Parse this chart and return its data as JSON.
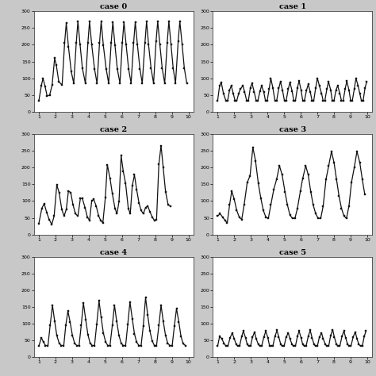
{
  "cases": [
    "case 0",
    "case 1",
    "case 2",
    "case 3",
    "case 4",
    "case 5"
  ],
  "ylim": [
    0,
    300
  ],
  "yticks": [
    0,
    50,
    100,
    150,
    200,
    250,
    300
  ],
  "xticks": [
    1,
    2,
    3,
    4,
    5,
    6,
    7,
    8,
    9,
    10
  ],
  "bg_color": "#ffffff",
  "fig_bg": "#c8c8c8",
  "line_color": "#111111",
  "case0": [
    [
      1.0,
      33
    ],
    [
      1.15,
      78
    ],
    [
      1.25,
      100
    ],
    [
      1.38,
      75
    ],
    [
      1.5,
      47
    ],
    [
      1.65,
      50
    ],
    [
      1.8,
      80
    ],
    [
      1.95,
      160
    ],
    [
      2.05,
      140
    ],
    [
      2.2,
      90
    ],
    [
      2.4,
      80
    ],
    [
      2.55,
      205
    ],
    [
      2.65,
      265
    ],
    [
      2.78,
      195
    ],
    [
      2.95,
      120
    ],
    [
      3.1,
      85
    ],
    [
      3.25,
      205
    ],
    [
      3.35,
      270
    ],
    [
      3.48,
      200
    ],
    [
      3.62,
      130
    ],
    [
      3.8,
      85
    ],
    [
      3.95,
      205
    ],
    [
      4.05,
      270
    ],
    [
      4.18,
      200
    ],
    [
      4.35,
      128
    ],
    [
      4.5,
      85
    ],
    [
      4.65,
      205
    ],
    [
      4.75,
      270
    ],
    [
      4.88,
      198
    ],
    [
      5.05,
      128
    ],
    [
      5.2,
      85
    ],
    [
      5.35,
      205
    ],
    [
      5.45,
      268
    ],
    [
      5.58,
      198
    ],
    [
      5.72,
      128
    ],
    [
      5.88,
      85
    ],
    [
      6.02,
      205
    ],
    [
      6.12,
      268
    ],
    [
      6.25,
      200
    ],
    [
      6.4,
      128
    ],
    [
      6.55,
      85
    ],
    [
      6.7,
      205
    ],
    [
      6.8,
      268
    ],
    [
      6.93,
      200
    ],
    [
      7.08,
      128
    ],
    [
      7.22,
      85
    ],
    [
      7.38,
      205
    ],
    [
      7.48,
      270
    ],
    [
      7.6,
      200
    ],
    [
      7.75,
      130
    ],
    [
      7.9,
      85
    ],
    [
      8.05,
      210
    ],
    [
      8.15,
      270
    ],
    [
      8.28,
      200
    ],
    [
      8.42,
      130
    ],
    [
      8.57,
      85
    ],
    [
      8.72,
      205
    ],
    [
      8.82,
      270
    ],
    [
      8.95,
      200
    ],
    [
      9.08,
      130
    ],
    [
      9.22,
      85
    ],
    [
      9.38,
      210
    ],
    [
      9.48,
      270
    ],
    [
      9.62,
      200
    ],
    [
      9.75,
      130
    ],
    [
      9.9,
      85
    ]
  ],
  "case1": [
    [
      1.0,
      33
    ],
    [
      1.12,
      78
    ],
    [
      1.22,
      88
    ],
    [
      1.35,
      55
    ],
    [
      1.5,
      33
    ],
    [
      1.6,
      33
    ],
    [
      1.72,
      65
    ],
    [
      1.82,
      78
    ],
    [
      1.94,
      55
    ],
    [
      2.05,
      33
    ],
    [
      2.15,
      33
    ],
    [
      2.27,
      55
    ],
    [
      2.37,
      68
    ],
    [
      2.52,
      78
    ],
    [
      2.62,
      60
    ],
    [
      2.75,
      33
    ],
    [
      2.85,
      33
    ],
    [
      2.97,
      72
    ],
    [
      3.07,
      85
    ],
    [
      3.2,
      60
    ],
    [
      3.32,
      33
    ],
    [
      3.42,
      33
    ],
    [
      3.55,
      62
    ],
    [
      3.65,
      78
    ],
    [
      3.78,
      58
    ],
    [
      3.88,
      33
    ],
    [
      3.98,
      33
    ],
    [
      4.1,
      68
    ],
    [
      4.2,
      100
    ],
    [
      4.32,
      72
    ],
    [
      4.45,
      33
    ],
    [
      4.55,
      33
    ],
    [
      4.68,
      70
    ],
    [
      4.78,
      90
    ],
    [
      4.9,
      65
    ],
    [
      5.02,
      33
    ],
    [
      5.12,
      33
    ],
    [
      5.25,
      68
    ],
    [
      5.35,
      88
    ],
    [
      5.48,
      62
    ],
    [
      5.58,
      33
    ],
    [
      5.68,
      33
    ],
    [
      5.8,
      72
    ],
    [
      5.9,
      92
    ],
    [
      6.02,
      65
    ],
    [
      6.12,
      33
    ],
    [
      6.22,
      33
    ],
    [
      6.35,
      65
    ],
    [
      6.45,
      82
    ],
    [
      6.58,
      58
    ],
    [
      6.68,
      33
    ],
    [
      6.78,
      33
    ],
    [
      6.9,
      72
    ],
    [
      7.0,
      100
    ],
    [
      7.12,
      78
    ],
    [
      7.25,
      55
    ],
    [
      7.35,
      33
    ],
    [
      7.45,
      33
    ],
    [
      7.57,
      68
    ],
    [
      7.67,
      90
    ],
    [
      7.8,
      65
    ],
    [
      7.9,
      33
    ],
    [
      8.0,
      33
    ],
    [
      8.12,
      65
    ],
    [
      8.22,
      78
    ],
    [
      8.35,
      55
    ],
    [
      8.45,
      33
    ],
    [
      8.55,
      33
    ],
    [
      8.67,
      68
    ],
    [
      8.77,
      92
    ],
    [
      8.9,
      65
    ],
    [
      9.0,
      33
    ],
    [
      9.1,
      33
    ],
    [
      9.22,
      68
    ],
    [
      9.32,
      100
    ],
    [
      9.45,
      78
    ],
    [
      9.55,
      55
    ],
    [
      9.65,
      33
    ],
    [
      9.75,
      33
    ],
    [
      9.87,
      72
    ],
    [
      9.97,
      90
    ]
  ],
  "case2": [
    [
      1.0,
      33
    ],
    [
      1.18,
      78
    ],
    [
      1.32,
      92
    ],
    [
      1.48,
      65
    ],
    [
      1.62,
      45
    ],
    [
      1.78,
      30
    ],
    [
      1.92,
      55
    ],
    [
      2.08,
      148
    ],
    [
      2.22,
      125
    ],
    [
      2.38,
      75
    ],
    [
      2.52,
      55
    ],
    [
      2.65,
      75
    ],
    [
      2.78,
      130
    ],
    [
      2.92,
      125
    ],
    [
      3.05,
      90
    ],
    [
      3.2,
      62
    ],
    [
      3.35,
      55
    ],
    [
      3.5,
      108
    ],
    [
      3.62,
      107
    ],
    [
      3.78,
      80
    ],
    [
      3.92,
      52
    ],
    [
      4.05,
      42
    ],
    [
      4.18,
      100
    ],
    [
      4.3,
      105
    ],
    [
      4.45,
      85
    ],
    [
      4.6,
      55
    ],
    [
      4.72,
      42
    ],
    [
      4.85,
      35
    ],
    [
      5.0,
      110
    ],
    [
      5.12,
      208
    ],
    [
      5.28,
      168
    ],
    [
      5.42,
      122
    ],
    [
      5.58,
      78
    ],
    [
      5.7,
      62
    ],
    [
      5.82,
      98
    ],
    [
      5.95,
      235
    ],
    [
      6.08,
      188
    ],
    [
      6.22,
      152
    ],
    [
      6.38,
      78
    ],
    [
      6.5,
      62
    ],
    [
      6.62,
      145
    ],
    [
      6.75,
      178
    ],
    [
      6.88,
      135
    ],
    [
      7.02,
      95
    ],
    [
      7.15,
      72
    ],
    [
      7.28,
      62
    ],
    [
      7.42,
      80
    ],
    [
      7.55,
      85
    ],
    [
      7.68,
      68
    ],
    [
      7.82,
      52
    ],
    [
      7.95,
      42
    ],
    [
      8.08,
      45
    ],
    [
      8.22,
      210
    ],
    [
      8.35,
      265
    ],
    [
      8.48,
      200
    ],
    [
      8.62,
      128
    ],
    [
      8.78,
      88
    ],
    [
      8.92,
      85
    ]
  ],
  "case3": [
    [
      1.0,
      55
    ],
    [
      1.15,
      62
    ],
    [
      1.3,
      52
    ],
    [
      1.45,
      42
    ],
    [
      1.58,
      35
    ],
    [
      1.72,
      88
    ],
    [
      1.85,
      130
    ],
    [
      2.0,
      105
    ],
    [
      2.15,
      72
    ],
    [
      2.3,
      52
    ],
    [
      2.45,
      45
    ],
    [
      2.6,
      90
    ],
    [
      2.78,
      155
    ],
    [
      2.95,
      175
    ],
    [
      3.12,
      260
    ],
    [
      3.28,
      220
    ],
    [
      3.45,
      152
    ],
    [
      3.6,
      108
    ],
    [
      3.75,
      72
    ],
    [
      3.9,
      52
    ],
    [
      4.05,
      48
    ],
    [
      4.2,
      88
    ],
    [
      4.38,
      135
    ],
    [
      4.55,
      165
    ],
    [
      4.72,
      205
    ],
    [
      4.88,
      178
    ],
    [
      5.05,
      128
    ],
    [
      5.2,
      88
    ],
    [
      5.35,
      58
    ],
    [
      5.5,
      48
    ],
    [
      5.65,
      48
    ],
    [
      5.8,
      78
    ],
    [
      5.98,
      130
    ],
    [
      6.12,
      168
    ],
    [
      6.3,
      205
    ],
    [
      6.45,
      178
    ],
    [
      6.6,
      128
    ],
    [
      6.75,
      88
    ],
    [
      6.9,
      62
    ],
    [
      7.05,
      48
    ],
    [
      7.2,
      48
    ],
    [
      7.35,
      85
    ],
    [
      7.52,
      165
    ],
    [
      7.68,
      205
    ],
    [
      7.85,
      248
    ],
    [
      8.0,
      215
    ],
    [
      8.15,
      165
    ],
    [
      8.3,
      115
    ],
    [
      8.45,
      78
    ],
    [
      8.6,
      55
    ],
    [
      8.75,
      48
    ],
    [
      8.9,
      85
    ],
    [
      9.05,
      155
    ],
    [
      9.22,
      200
    ],
    [
      9.38,
      248
    ],
    [
      9.55,
      215
    ],
    [
      9.7,
      165
    ],
    [
      9.85,
      120
    ]
  ],
  "case4": [
    [
      1.0,
      33
    ],
    [
      1.15,
      58
    ],
    [
      1.28,
      45
    ],
    [
      1.4,
      35
    ],
    [
      1.55,
      35
    ],
    [
      1.68,
      95
    ],
    [
      1.82,
      155
    ],
    [
      1.95,
      108
    ],
    [
      2.08,
      65
    ],
    [
      2.22,
      42
    ],
    [
      2.35,
      35
    ],
    [
      2.5,
      35
    ],
    [
      2.62,
      95
    ],
    [
      2.75,
      138
    ],
    [
      2.88,
      105
    ],
    [
      3.02,
      65
    ],
    [
      3.15,
      42
    ],
    [
      3.28,
      35
    ],
    [
      3.42,
      35
    ],
    [
      3.55,
      95
    ],
    [
      3.68,
      162
    ],
    [
      3.82,
      112
    ],
    [
      3.95,
      68
    ],
    [
      4.08,
      42
    ],
    [
      4.22,
      35
    ],
    [
      4.35,
      35
    ],
    [
      4.48,
      98
    ],
    [
      4.62,
      168
    ],
    [
      4.75,
      118
    ],
    [
      4.88,
      72
    ],
    [
      5.02,
      45
    ],
    [
      5.15,
      35
    ],
    [
      5.28,
      35
    ],
    [
      5.42,
      95
    ],
    [
      5.55,
      155
    ],
    [
      5.68,
      108
    ],
    [
      5.82,
      65
    ],
    [
      5.95,
      42
    ],
    [
      6.08,
      35
    ],
    [
      6.22,
      35
    ],
    [
      6.35,
      98
    ],
    [
      6.48,
      165
    ],
    [
      6.62,
      115
    ],
    [
      6.75,
      70
    ],
    [
      6.88,
      45
    ],
    [
      7.02,
      35
    ],
    [
      7.15,
      35
    ],
    [
      7.28,
      92
    ],
    [
      7.42,
      178
    ],
    [
      7.55,
      125
    ],
    [
      7.68,
      78
    ],
    [
      7.82,
      48
    ],
    [
      7.95,
      35
    ],
    [
      8.08,
      35
    ],
    [
      8.22,
      95
    ],
    [
      8.35,
      155
    ],
    [
      8.48,
      108
    ],
    [
      8.62,
      65
    ],
    [
      8.75,
      42
    ],
    [
      8.88,
      35
    ],
    [
      9.02,
      35
    ],
    [
      9.15,
      92
    ],
    [
      9.28,
      145
    ],
    [
      9.42,
      105
    ],
    [
      9.55,
      62
    ],
    [
      9.68,
      40
    ],
    [
      9.82,
      35
    ]
  ],
  "case5": [
    [
      1.0,
      33
    ],
    [
      1.12,
      62
    ],
    [
      1.25,
      55
    ],
    [
      1.38,
      42
    ],
    [
      1.5,
      33
    ],
    [
      1.62,
      33
    ],
    [
      1.75,
      58
    ],
    [
      1.88,
      72
    ],
    [
      2.0,
      55
    ],
    [
      2.12,
      38
    ],
    [
      2.22,
      33
    ],
    [
      2.32,
      33
    ],
    [
      2.45,
      62
    ],
    [
      2.55,
      78
    ],
    [
      2.68,
      58
    ],
    [
      2.78,
      38
    ],
    [
      2.88,
      33
    ],
    [
      2.98,
      33
    ],
    [
      3.1,
      60
    ],
    [
      3.22,
      75
    ],
    [
      3.32,
      55
    ],
    [
      3.45,
      38
    ],
    [
      3.55,
      33
    ],
    [
      3.65,
      33
    ],
    [
      3.78,
      60
    ],
    [
      3.9,
      78
    ],
    [
      4.02,
      58
    ],
    [
      4.12,
      35
    ],
    [
      4.22,
      33
    ],
    [
      4.32,
      33
    ],
    [
      4.45,
      62
    ],
    [
      4.57,
      80
    ],
    [
      4.68,
      60
    ],
    [
      4.8,
      38
    ],
    [
      4.9,
      33
    ],
    [
      5.0,
      33
    ],
    [
      5.12,
      60
    ],
    [
      5.25,
      72
    ],
    [
      5.35,
      55
    ],
    [
      5.48,
      38
    ],
    [
      5.58,
      33
    ],
    [
      5.68,
      33
    ],
    [
      5.8,
      62
    ],
    [
      5.9,
      78
    ],
    [
      6.02,
      58
    ],
    [
      6.12,
      38
    ],
    [
      6.22,
      33
    ],
    [
      6.32,
      33
    ],
    [
      6.45,
      62
    ],
    [
      6.57,
      80
    ],
    [
      6.68,
      58
    ],
    [
      6.8,
      38
    ],
    [
      6.9,
      33
    ],
    [
      7.0,
      33
    ],
    [
      7.12,
      60
    ],
    [
      7.25,
      72
    ],
    [
      7.35,
      55
    ],
    [
      7.48,
      38
    ],
    [
      7.58,
      33
    ],
    [
      7.68,
      33
    ],
    [
      7.8,
      65
    ],
    [
      7.92,
      82
    ],
    [
      8.02,
      60
    ],
    [
      8.15,
      38
    ],
    [
      8.25,
      33
    ],
    [
      8.35,
      33
    ],
    [
      8.48,
      62
    ],
    [
      8.6,
      78
    ],
    [
      8.7,
      58
    ],
    [
      8.82,
      38
    ],
    [
      8.92,
      33
    ],
    [
      9.02,
      33
    ],
    [
      9.15,
      60
    ],
    [
      9.28,
      75
    ],
    [
      9.38,
      55
    ],
    [
      9.5,
      38
    ],
    [
      9.6,
      33
    ],
    [
      9.7,
      33
    ],
    [
      9.82,
      62
    ],
    [
      9.92,
      78
    ]
  ]
}
